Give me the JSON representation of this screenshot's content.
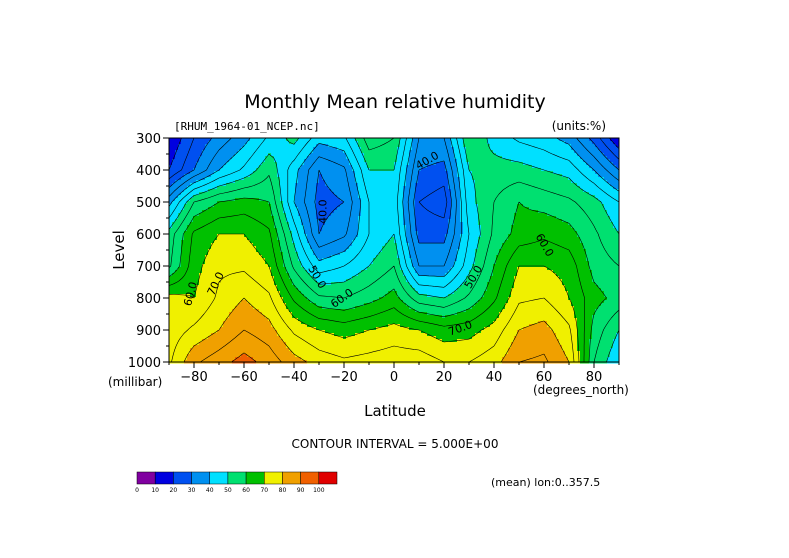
{
  "chart_data": {
    "type": "contour",
    "title": "Monthly Mean relative humidity",
    "file_label": "[RHUM_1964-01_NCEP.nc]",
    "units_label": "(units:%)",
    "xlabel": "Latitude",
    "x_unit_label": "(degrees_north)",
    "ylabel": "Level",
    "y_unit_label": "(millibar)",
    "contour_interval_label": "CONTOUR INTERVAL = 5.000E+00",
    "footer_label": "(mean) lon:0..357.5",
    "xlim": [
      -90,
      90
    ],
    "ylim": [
      1000,
      300
    ],
    "x_ticks": [
      -80,
      -60,
      -40,
      -20,
      0,
      20,
      40,
      60,
      80
    ],
    "y_ticks": [
      300,
      400,
      500,
      600,
      700,
      800,
      900,
      1000
    ],
    "contour_interval": 5,
    "contour_labels": [
      "40.0",
      "40.0",
      "50.0",
      "50.0",
      "60.0",
      "60.0",
      "60.0",
      "70.0",
      "70.0"
    ],
    "colorbar": {
      "ticks": [
        "0",
        "10",
        "20",
        "30",
        "40",
        "50",
        "60",
        "70",
        "80",
        "90",
        "100"
      ],
      "colors": [
        "#8000a0",
        "#0000e0",
        "#0050f0",
        "#0090f0",
        "#00e0ff",
        "#00e070",
        "#00c000",
        "#f0f000",
        "#f0a000",
        "#f06000",
        "#e00000"
      ]
    },
    "latitudes": [
      -90,
      -80,
      -70,
      -60,
      -50,
      -40,
      -30,
      -20,
      -10,
      0,
      10,
      20,
      30,
      40,
      50,
      60,
      70,
      80,
      90
    ],
    "levels": [
      300,
      400,
      500,
      600,
      700,
      800,
      900,
      1000
    ],
    "rh": [
      [
        15,
        25,
        32,
        38,
        46,
        52,
        42,
        44,
        58,
        55,
        35,
        35,
        55,
        48,
        44,
        42,
        38,
        28,
        15
      ],
      [
        20,
        30,
        40,
        46,
        54,
        42,
        30,
        34,
        50,
        50,
        30,
        28,
        50,
        52,
        52,
        50,
        48,
        40,
        30
      ],
      [
        38,
        55,
        60,
        62,
        60,
        40,
        28,
        30,
        45,
        48,
        25,
        22,
        48,
        55,
        60,
        58,
        56,
        52,
        45
      ],
      [
        52,
        66,
        70,
        70,
        66,
        48,
        30,
        34,
        45,
        50,
        28,
        28,
        45,
        56,
        62,
        64,
        62,
        56,
        50
      ],
      [
        54,
        68,
        74,
        74,
        70,
        54,
        42,
        45,
        50,
        55,
        35,
        35,
        48,
        60,
        70,
        70,
        68,
        58,
        55
      ],
      [
        72,
        70,
        76,
        80,
        76,
        64,
        56,
        55,
        58,
        62,
        52,
        50,
        56,
        64,
        74,
        75,
        70,
        62,
        58
      ],
      [
        72,
        76,
        80,
        85,
        82,
        74,
        70,
        68,
        70,
        72,
        70,
        67,
        68,
        72,
        80,
        82,
        76,
        58,
        50
      ],
      [
        74,
        84,
        88,
        92,
        88,
        82,
        78,
        76,
        77,
        78,
        78,
        75,
        75,
        78,
        85,
        86,
        80,
        55,
        45
      ]
    ]
  }
}
